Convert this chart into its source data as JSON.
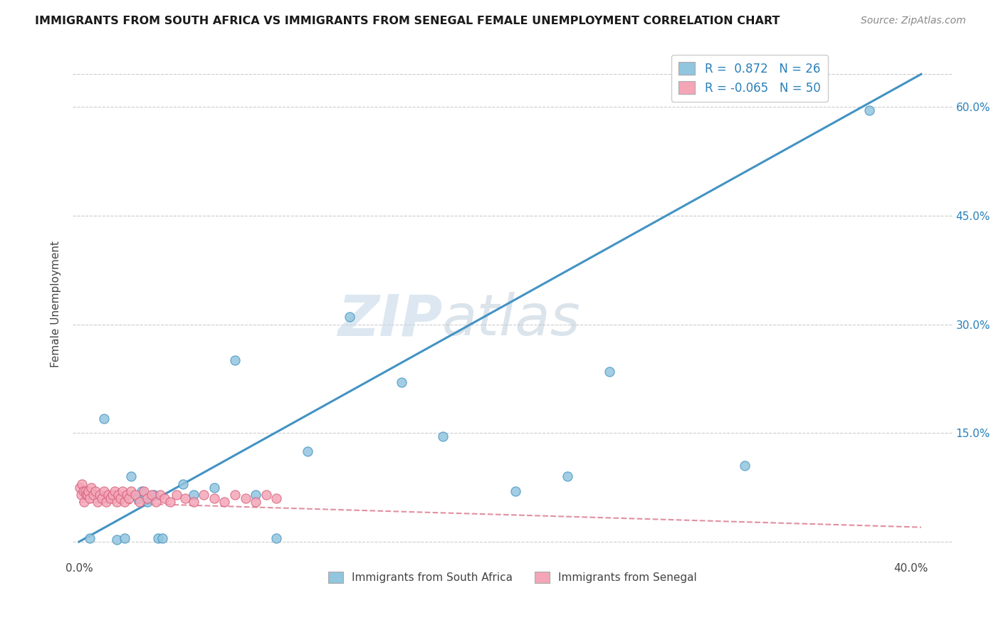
{
  "title": "IMMIGRANTS FROM SOUTH AFRICA VS IMMIGRANTS FROM SENEGAL FEMALE UNEMPLOYMENT CORRELATION CHART",
  "source": "Source: ZipAtlas.com",
  "ylabel": "Female Unemployment",
  "xlim": [
    -0.003,
    0.42
  ],
  "ylim": [
    -0.025,
    0.68
  ],
  "color_blue": "#92c5de",
  "color_blue_dark": "#4393c3",
  "color_pink": "#f4a6b8",
  "color_pink_dark": "#d6607a",
  "watermark_text": "ZIPatlas",
  "background_color": "#ffffff",
  "grid_color": "#cccccc",
  "south_africa_x": [
    0.005,
    0.012,
    0.018,
    0.022,
    0.025,
    0.028,
    0.03,
    0.033,
    0.036,
    0.038,
    0.04,
    0.05,
    0.055,
    0.065,
    0.075,
    0.085,
    0.095,
    0.11,
    0.13,
    0.155,
    0.175,
    0.21,
    0.235,
    0.255,
    0.32,
    0.38
  ],
  "south_africa_y": [
    0.005,
    0.17,
    0.003,
    0.005,
    0.09,
    0.06,
    0.07,
    0.055,
    0.065,
    0.005,
    0.005,
    0.08,
    0.065,
    0.075,
    0.25,
    0.065,
    0.005,
    0.125,
    0.31,
    0.22,
    0.145,
    0.07,
    0.09,
    0.235,
    0.105,
    0.595
  ],
  "senegal_x": [
    0.0005,
    0.001,
    0.0015,
    0.002,
    0.0025,
    0.003,
    0.0035,
    0.004,
    0.0045,
    0.005,
    0.006,
    0.007,
    0.008,
    0.009,
    0.01,
    0.011,
    0.012,
    0.013,
    0.014,
    0.015,
    0.016,
    0.017,
    0.018,
    0.019,
    0.02,
    0.021,
    0.022,
    0.023,
    0.024,
    0.025,
    0.027,
    0.029,
    0.031,
    0.033,
    0.035,
    0.037,
    0.039,
    0.041,
    0.044,
    0.047,
    0.051,
    0.055,
    0.06,
    0.065,
    0.07,
    0.075,
    0.08,
    0.085,
    0.09,
    0.095
  ],
  "senegal_y": [
    0.075,
    0.065,
    0.08,
    0.07,
    0.055,
    0.07,
    0.065,
    0.065,
    0.07,
    0.06,
    0.075,
    0.065,
    0.07,
    0.055,
    0.065,
    0.06,
    0.07,
    0.055,
    0.065,
    0.06,
    0.065,
    0.07,
    0.055,
    0.065,
    0.06,
    0.07,
    0.055,
    0.065,
    0.06,
    0.07,
    0.065,
    0.055,
    0.07,
    0.06,
    0.065,
    0.055,
    0.065,
    0.06,
    0.055,
    0.065,
    0.06,
    0.055,
    0.065,
    0.06,
    0.055,
    0.065,
    0.06,
    0.055,
    0.065,
    0.06
  ],
  "sa_line_x": [
    0.0,
    0.405
  ],
  "sa_line_y": [
    0.0,
    0.645
  ],
  "sn_line_x": [
    0.0,
    0.405
  ],
  "sn_line_y": [
    0.055,
    0.02
  ]
}
